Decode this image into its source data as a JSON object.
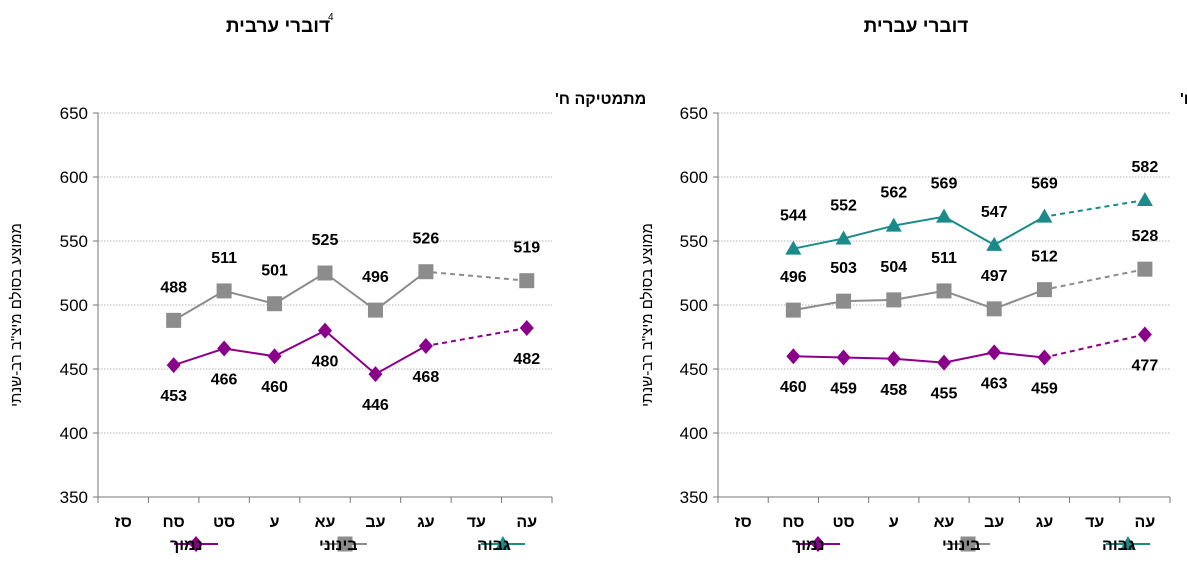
{
  "chart_data": [
    {
      "type": "line",
      "title": "דוברי עברית",
      "title_sup": "",
      "subtitle": "מתמטיקה  ח'",
      "ylabel": "ממוצע בסולם מיצ\"ב רב-שנתי",
      "ylim": [
        350,
        650
      ],
      "yticks": [
        350,
        400,
        450,
        500,
        550,
        600,
        650
      ],
      "categories": [
        "עה",
        "עד",
        "עג",
        "עב",
        "עא",
        "ע",
        "סט",
        "סח",
        "סז"
      ],
      "grid": true,
      "legend_position": "bottom",
      "series": [
        {
          "name": "גבוה",
          "color": "#1A8A8A",
          "marker": "triangle",
          "values": [
            582,
            null,
            569,
            547,
            569,
            562,
            552,
            544,
            null
          ],
          "dashed_segments": [
            [
              0,
              2
            ]
          ]
        },
        {
          "name": "בינוני",
          "color": "#8C8C8C",
          "marker": "square",
          "values": [
            528,
            null,
            512,
            497,
            511,
            504,
            503,
            496,
            null
          ],
          "dashed_segments": [
            [
              0,
              2
            ]
          ]
        },
        {
          "name": "נמוך",
          "color": "#8B008B",
          "marker": "diamond",
          "values": [
            477,
            null,
            459,
            463,
            455,
            458,
            459,
            460,
            null
          ],
          "dashed_segments": [
            [
              0,
              2
            ]
          ]
        }
      ]
    },
    {
      "type": "line",
      "title": "דוברי ערבית",
      "title_sup": "4",
      "subtitle": "מתמטיקה ח'",
      "ylabel": "ממוצע בסולם מיצ\"ב רב-שנתי",
      "ylim": [
        350,
        650
      ],
      "yticks": [
        350,
        400,
        450,
        500,
        550,
        600,
        650
      ],
      "categories": [
        "עה",
        "עד",
        "עג",
        "עב",
        "עא",
        "ע",
        "סט",
        "סח",
        "סז"
      ],
      "grid": true,
      "legend_position": "bottom",
      "series": [
        {
          "name": "בינוני",
          "color": "#8C8C8C",
          "marker": "square",
          "values": [
            519,
            null,
            526,
            496,
            525,
            501,
            511,
            488,
            null
          ],
          "dashed_segments": [
            [
              0,
              2
            ]
          ]
        },
        {
          "name": "נמוך",
          "color": "#8B008B",
          "marker": "diamond",
          "values": [
            482,
            null,
            468,
            446,
            480,
            460,
            466,
            453,
            null
          ],
          "dashed_segments": [
            [
              0,
              2
            ]
          ]
        }
      ],
      "legend_extra": [
        {
          "name": "גבוה",
          "color": "#1A8A8A",
          "marker": "triangle"
        }
      ]
    }
  ]
}
